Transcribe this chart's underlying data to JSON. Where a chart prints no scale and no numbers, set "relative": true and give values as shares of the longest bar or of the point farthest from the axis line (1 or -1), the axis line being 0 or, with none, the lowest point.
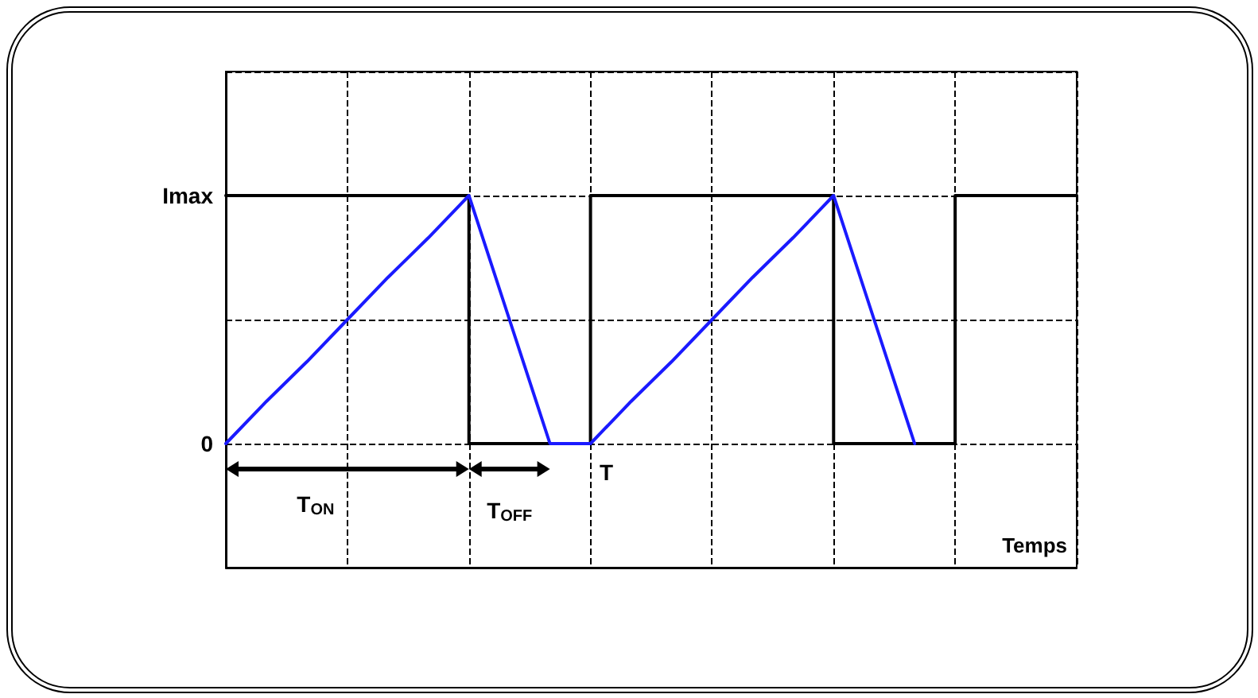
{
  "chart_data": {
    "type": "line",
    "relative": true,
    "xlabel": "Temps",
    "categories": [
      null,
      null,
      null,
      null,
      null,
      null,
      null,
      null,
      null,
      null,
      null,
      null,
      null,
      null,
      null,
      null,
      null,
      null,
      null,
      null,
      null,
      null
    ],
    "series": [
      {
        "type": "step",
        "color": "#000000",
        "values": [
          1,
          1,
          1,
          1,
          1,
          1,
          0,
          0,
          0,
          1,
          1,
          1,
          1,
          1,
          1,
          0,
          0,
          0,
          1,
          1,
          1,
          1
        ]
      },
      {
        "color": "#1a1aff",
        "values": [
          0,
          0.17,
          0.33,
          0.5,
          0.67,
          0.83,
          1,
          0.5,
          0,
          0,
          0.17,
          0.33,
          0.5,
          0.67,
          0.83,
          1,
          0.5,
          0,
          null,
          null,
          null,
          null
        ]
      }
    ],
    "grid": true,
    "marker": "none",
    "line_style": "solid",
    "annotations": [
      "Imax",
      "0",
      "T$_{ON}$",
      "T$_{OFF}$",
      "T"
    ]
  }
}
